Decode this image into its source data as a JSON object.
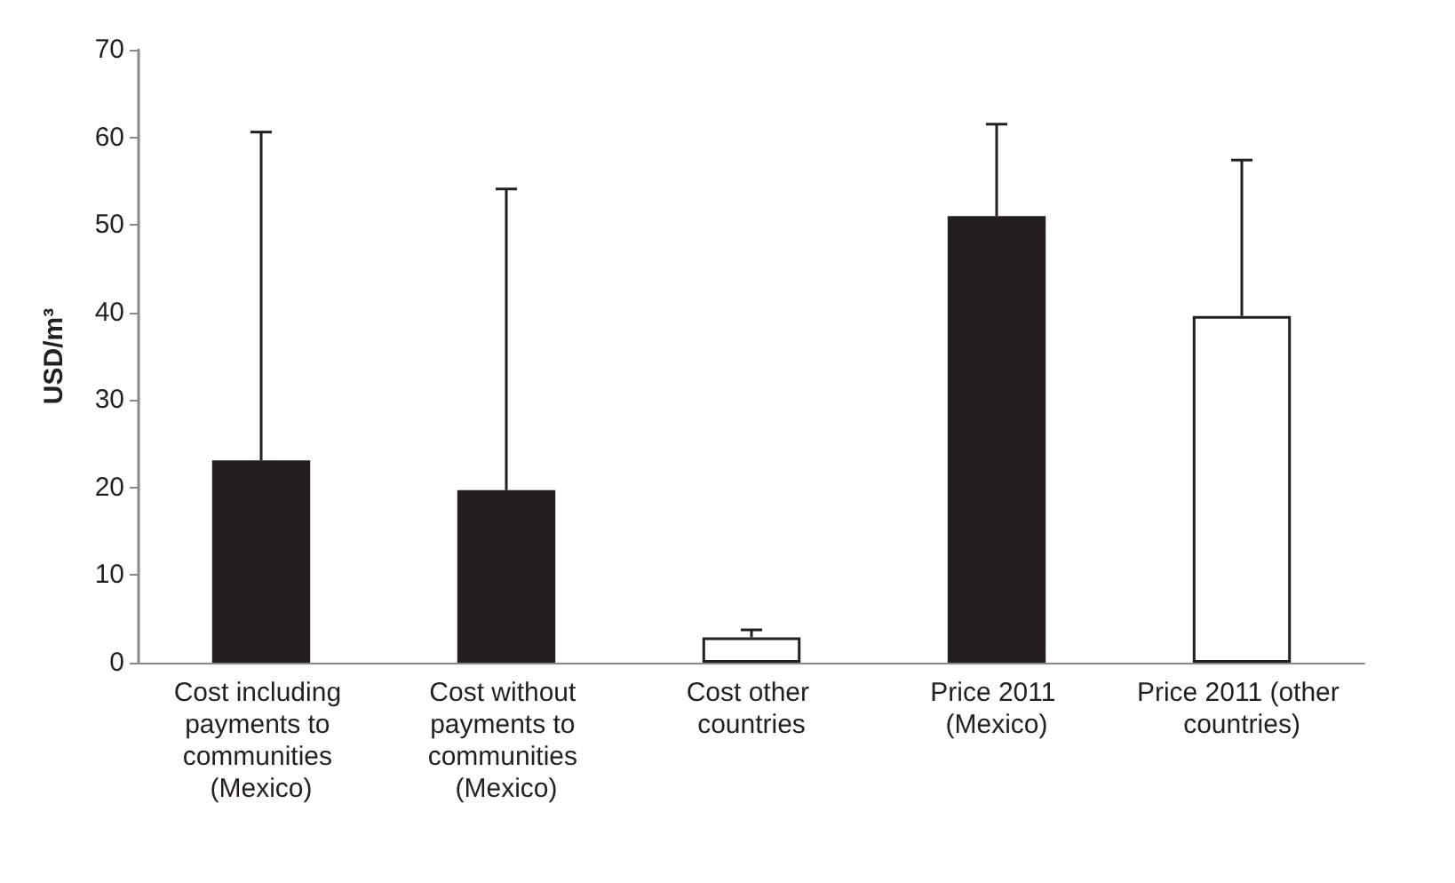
{
  "chart_data": {
    "type": "bar",
    "ylabel": "USD/m³",
    "categories": [
      "Cost including payments to communities (Mexico)",
      "Cost without payments to communities (Mexico)",
      "Cost other countries",
      "Price 2011 (Mexico)",
      "Price 2011 (other countries)"
    ],
    "values": [
      23.1,
      19.7,
      2.9,
      51.0,
      39.6
    ],
    "colors": [
      "#231f20",
      "#231f20",
      "#ffffff",
      "#231f20",
      "#ffffff"
    ],
    "errors": [
      [
        23.1,
        60.6
      ],
      [
        19.7,
        54.1
      ],
      [
        2.9,
        3.75
      ],
      [
        51.0,
        61.5
      ],
      [
        39.6,
        57.4
      ]
    ],
    "ylim": [
      0,
      70
    ],
    "yticks": [
      0,
      10,
      20,
      30,
      40,
      50,
      60,
      70
    ]
  }
}
